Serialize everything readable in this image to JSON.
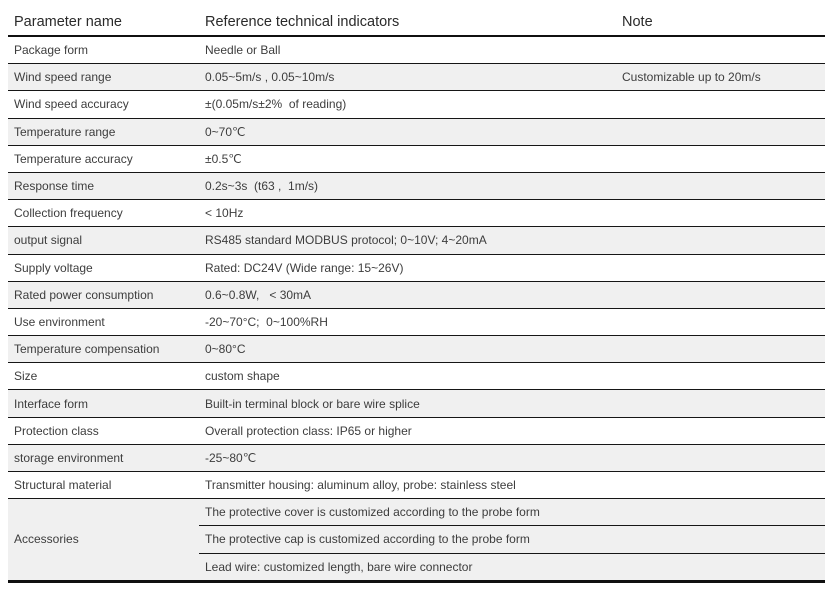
{
  "table": {
    "header": {
      "param": "Parameter name",
      "indicators": "Reference technical indicators",
      "note": "Note"
    },
    "colors": {
      "row_alt_bg": "#f0f0f0",
      "border": "#101010",
      "text": "#3d3d3d"
    },
    "rows": [
      {
        "param": "Package form",
        "value": "Needle or Ball",
        "note": ""
      },
      {
        "param": "Wind speed range",
        "value": "0.05~5m/s , 0.05~10m/s",
        "note": "Customizable up to 20m/s"
      },
      {
        "param": "Wind speed accuracy",
        "value": "±(0.05m/s±2%  of reading)",
        "note": ""
      },
      {
        "param": "Temperature range",
        "value": "0~70℃",
        "note": ""
      },
      {
        "param": "Temperature accuracy",
        "value": "±0.5℃",
        "note": ""
      },
      {
        "param": "Response time",
        "value": "0.2s~3s  (t63 ,  1m/s)",
        "note": ""
      },
      {
        "param": "Collection frequency",
        "value": "< 10Hz",
        "note": ""
      },
      {
        "param": "output signal",
        "value": "RS485 standard MODBUS protocol; 0~10V; 4~20mA",
        "note": ""
      },
      {
        "param": "Supply voltage",
        "value": "Rated: DC24V (Wide range: 15~26V)",
        "note": ""
      },
      {
        "param": "Rated power consumption",
        "value": "0.6~0.8W,   < 30mA",
        "note": ""
      },
      {
        "param": "Use environment",
        "value": "-20~70°C;  0~100%RH",
        "note": ""
      },
      {
        "param": "Temperature compensation",
        "value": "0~80°C",
        "note": ""
      },
      {
        "param": "Size",
        "value": "custom shape",
        "note": ""
      },
      {
        "param": "Interface form",
        "value": "Built-in terminal block or bare wire splice",
        "note": ""
      },
      {
        "param": "Protection class",
        "value": "Overall protection class: IP65 or higher",
        "note": ""
      },
      {
        "param": "storage environment",
        "value": "-25~80℃",
        "note": ""
      },
      {
        "param": "Structural material",
        "value": "Transmitter housing: aluminum alloy, probe: stainless steel",
        "note": ""
      }
    ],
    "accessories": {
      "param": "Accessories",
      "items": [
        "The protective cover is customized according to the probe form",
        "The protective cap is customized according to the probe form",
        "Lead wire: customized length, bare wire connector"
      ]
    }
  }
}
